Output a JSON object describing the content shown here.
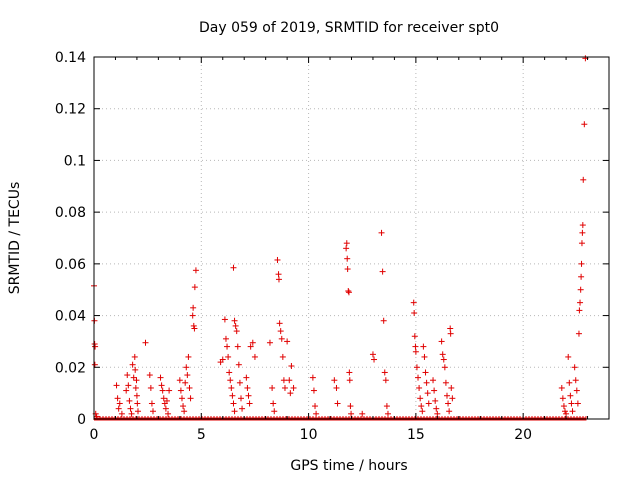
{
  "chart_data": {
    "type": "scatter",
    "title": "Day 059 of 2019, SRMTID for receiver spt0",
    "xlabel": "GPS time / hours",
    "ylabel": "SRMTID / TECUs",
    "xlim": [
      0,
      24
    ],
    "ylim": [
      0,
      0.14
    ],
    "x_ticks": [
      0,
      5,
      10,
      15,
      20
    ],
    "y_ticks": [
      0,
      0.02,
      0.04,
      0.06,
      0.08,
      0.1,
      0.12,
      0.14
    ],
    "x_tick_labels": [
      "0",
      "5",
      "10",
      "15",
      "20"
    ],
    "y_tick_labels": [
      "0",
      "0.02",
      "0.04",
      "0.06",
      "0.08",
      "0.1",
      "0.12",
      "0.14"
    ],
    "grid": true,
    "marker": "plus",
    "color": "#e00000",
    "baseline_spans": [
      [
        0,
        24
      ]
    ],
    "series": [
      {
        "points": [
          [
            0.0,
            0.0515
          ],
          [
            0.02,
            0.038
          ],
          [
            0.03,
            0.029
          ],
          [
            0.05,
            0.028
          ],
          [
            0.04,
            0.021
          ],
          [
            0.08,
            0.002
          ],
          [
            0.12,
            0.001
          ],
          [
            1.05,
            0.013
          ],
          [
            1.1,
            0.008
          ],
          [
            1.15,
            0.004
          ],
          [
            1.2,
            0.006
          ],
          [
            1.3,
            0.002
          ],
          [
            1.5,
            0.011
          ],
          [
            1.55,
            0.017
          ],
          [
            1.6,
            0.013
          ],
          [
            1.65,
            0.007
          ],
          [
            1.7,
            0.004
          ],
          [
            1.75,
            0.002
          ],
          [
            1.8,
            0.021
          ],
          [
            1.85,
            0.016
          ],
          [
            1.9,
            0.024
          ],
          [
            1.92,
            0.019
          ],
          [
            1.95,
            0.012
          ],
          [
            2.0,
            0.009
          ],
          [
            2.02,
            0.006
          ],
          [
            2.05,
            0.003
          ],
          [
            1.98,
            0.015
          ],
          [
            2.4,
            0.0295
          ],
          [
            2.6,
            0.017
          ],
          [
            2.65,
            0.012
          ],
          [
            2.7,
            0.006
          ],
          [
            2.75,
            0.003
          ],
          [
            3.1,
            0.016
          ],
          [
            3.15,
            0.013
          ],
          [
            3.2,
            0.011
          ],
          [
            3.25,
            0.008
          ],
          [
            3.3,
            0.006
          ],
          [
            3.35,
            0.004
          ],
          [
            3.4,
            0.007
          ],
          [
            3.45,
            0.002
          ],
          [
            3.5,
            0.011
          ],
          [
            4.0,
            0.015
          ],
          [
            4.05,
            0.011
          ],
          [
            4.1,
            0.008
          ],
          [
            4.15,
            0.005
          ],
          [
            4.2,
            0.003
          ],
          [
            4.25,
            0.014
          ],
          [
            4.3,
            0.02
          ],
          [
            4.35,
            0.017
          ],
          [
            4.4,
            0.024
          ],
          [
            4.45,
            0.012
          ],
          [
            4.5,
            0.008
          ],
          [
            4.6,
            0.04
          ],
          [
            4.62,
            0.043
          ],
          [
            4.65,
            0.036
          ],
          [
            4.68,
            0.035
          ],
          [
            4.7,
            0.051
          ],
          [
            4.75,
            0.0575
          ],
          [
            5.9,
            0.022
          ],
          [
            6.0,
            0.023
          ],
          [
            6.1,
            0.0385
          ],
          [
            6.15,
            0.031
          ],
          [
            6.2,
            0.028
          ],
          [
            6.25,
            0.024
          ],
          [
            6.3,
            0.018
          ],
          [
            6.35,
            0.015
          ],
          [
            6.4,
            0.012
          ],
          [
            6.45,
            0.009
          ],
          [
            6.5,
            0.006
          ],
          [
            6.55,
            0.003
          ],
          [
            6.5,
            0.0585
          ],
          [
            6.55,
            0.038
          ],
          [
            6.6,
            0.036
          ],
          [
            6.65,
            0.034
          ],
          [
            6.7,
            0.028
          ],
          [
            6.75,
            0.021
          ],
          [
            6.8,
            0.014
          ],
          [
            6.85,
            0.008
          ],
          [
            6.9,
            0.004
          ],
          [
            7.1,
            0.016
          ],
          [
            7.15,
            0.012
          ],
          [
            7.2,
            0.009
          ],
          [
            7.25,
            0.006
          ],
          [
            7.3,
            0.028
          ],
          [
            7.4,
            0.0295
          ],
          [
            7.5,
            0.024
          ],
          [
            8.2,
            0.0295
          ],
          [
            8.3,
            0.012
          ],
          [
            8.35,
            0.006
          ],
          [
            8.4,
            0.003
          ],
          [
            8.55,
            0.0615
          ],
          [
            8.6,
            0.056
          ],
          [
            8.62,
            0.054
          ],
          [
            8.65,
            0.037
          ],
          [
            8.7,
            0.034
          ],
          [
            8.75,
            0.031
          ],
          [
            8.8,
            0.024
          ],
          [
            8.85,
            0.015
          ],
          [
            8.9,
            0.012
          ],
          [
            9.0,
            0.03
          ],
          [
            9.1,
            0.015
          ],
          [
            9.15,
            0.01
          ],
          [
            9.2,
            0.0205
          ],
          [
            9.3,
            0.012
          ],
          [
            10.2,
            0.016
          ],
          [
            10.25,
            0.011
          ],
          [
            10.3,
            0.005
          ],
          [
            10.35,
            0.002
          ],
          [
            11.2,
            0.015
          ],
          [
            11.3,
            0.012
          ],
          [
            11.35,
            0.006
          ],
          [
            11.75,
            0.066
          ],
          [
            11.78,
            0.068
          ],
          [
            11.8,
            0.062
          ],
          [
            11.82,
            0.058
          ],
          [
            11.85,
            0.0495
          ],
          [
            11.88,
            0.049
          ],
          [
            11.9,
            0.018
          ],
          [
            11.92,
            0.015
          ],
          [
            11.95,
            0.005
          ],
          [
            11.98,
            0.002
          ],
          [
            12.5,
            0.002
          ],
          [
            13.0,
            0.025
          ],
          [
            13.05,
            0.023
          ],
          [
            13.4,
            0.072
          ],
          [
            13.45,
            0.057
          ],
          [
            13.5,
            0.038
          ],
          [
            13.55,
            0.018
          ],
          [
            13.6,
            0.015
          ],
          [
            13.65,
            0.005
          ],
          [
            13.7,
            0.002
          ],
          [
            14.9,
            0.045
          ],
          [
            14.92,
            0.041
          ],
          [
            14.95,
            0.032
          ],
          [
            14.98,
            0.028
          ],
          [
            15.0,
            0.026
          ],
          [
            15.05,
            0.02
          ],
          [
            15.1,
            0.016
          ],
          [
            15.15,
            0.012
          ],
          [
            15.2,
            0.008
          ],
          [
            15.25,
            0.005
          ],
          [
            15.3,
            0.003
          ],
          [
            15.35,
            0.028
          ],
          [
            15.4,
            0.024
          ],
          [
            15.45,
            0.018
          ],
          [
            15.5,
            0.014
          ],
          [
            15.55,
            0.01
          ],
          [
            15.6,
            0.006
          ],
          [
            15.8,
            0.015
          ],
          [
            15.85,
            0.011
          ],
          [
            15.9,
            0.007
          ],
          [
            15.95,
            0.004
          ],
          [
            16.0,
            0.002
          ],
          [
            16.2,
            0.03
          ],
          [
            16.25,
            0.025
          ],
          [
            16.3,
            0.023
          ],
          [
            16.35,
            0.02
          ],
          [
            16.4,
            0.014
          ],
          [
            16.45,
            0.009
          ],
          [
            16.5,
            0.006
          ],
          [
            16.55,
            0.003
          ],
          [
            16.6,
            0.035
          ],
          [
            16.62,
            0.033
          ],
          [
            16.65,
            0.012
          ],
          [
            16.7,
            0.008
          ],
          [
            21.8,
            0.012
          ],
          [
            21.85,
            0.008
          ],
          [
            21.9,
            0.005
          ],
          [
            21.95,
            0.003
          ],
          [
            22.0,
            0.002
          ],
          [
            22.1,
            0.024
          ],
          [
            22.15,
            0.014
          ],
          [
            22.2,
            0.009
          ],
          [
            22.25,
            0.006
          ],
          [
            22.3,
            0.003
          ],
          [
            22.4,
            0.02
          ],
          [
            22.45,
            0.015
          ],
          [
            22.5,
            0.011
          ],
          [
            22.55,
            0.006
          ],
          [
            22.6,
            0.033
          ],
          [
            22.62,
            0.042
          ],
          [
            22.65,
            0.045
          ],
          [
            22.68,
            0.05
          ],
          [
            22.7,
            0.055
          ],
          [
            22.72,
            0.06
          ],
          [
            22.74,
            0.068
          ],
          [
            22.76,
            0.072
          ],
          [
            22.78,
            0.075
          ],
          [
            22.8,
            0.0925
          ],
          [
            22.85,
            0.114
          ],
          [
            22.9,
            0.1395
          ]
        ]
      }
    ]
  }
}
